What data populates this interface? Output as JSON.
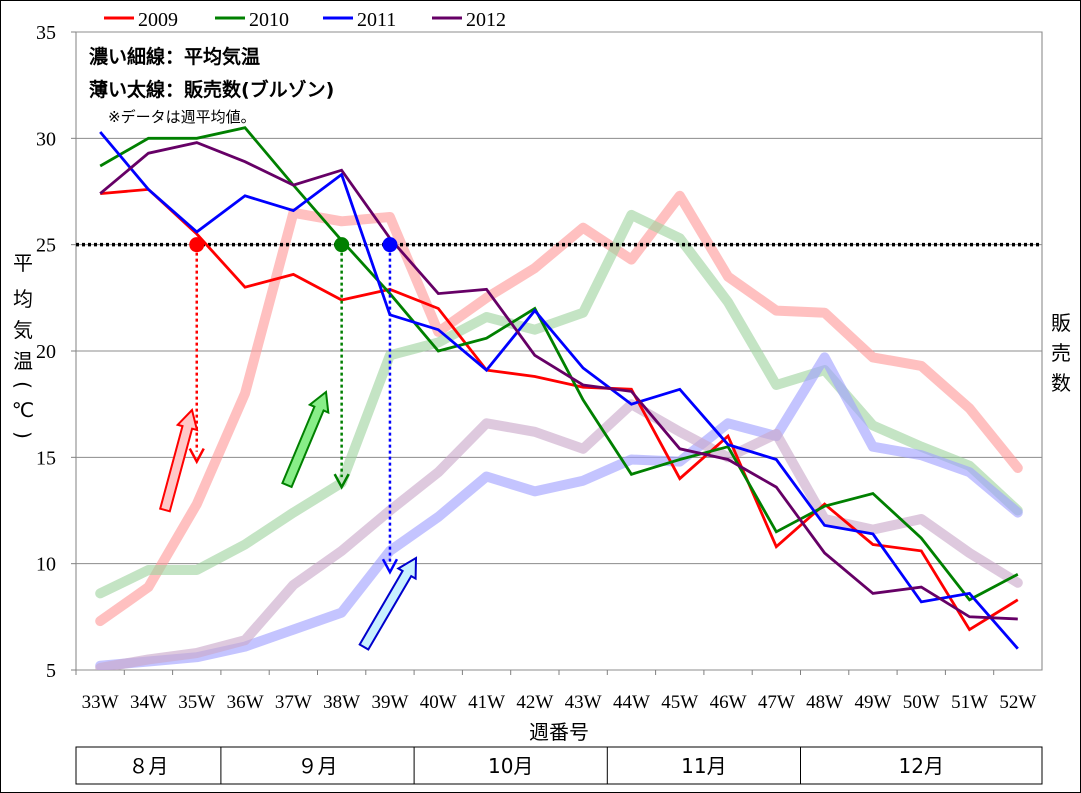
{
  "chart_data": {
    "type": "line",
    "xlabel": "週番号",
    "ylabel": "平均気温(℃)",
    "y2label": "販売数",
    "ylim": [
      5,
      35
    ],
    "yticks": [
      5,
      10,
      15,
      20,
      25,
      30,
      35
    ],
    "categories": [
      "33W",
      "34W",
      "35W",
      "36W",
      "37W",
      "38W",
      "39W",
      "40W",
      "41W",
      "42W",
      "43W",
      "44W",
      "45W",
      "46W",
      "47W",
      "48W",
      "49W",
      "50W",
      "51W",
      "52W"
    ],
    "months": [
      {
        "label": "８月",
        "span": [
          0,
          3
        ]
      },
      {
        "label": "９月",
        "span": [
          3,
          7
        ]
      },
      {
        "label": "10月",
        "span": [
          7,
          11
        ]
      },
      {
        "label": "11月",
        "span": [
          11,
          15
        ]
      },
      {
        "label": "12月",
        "span": [
          15,
          20
        ]
      }
    ],
    "notes": [
      "濃い細線：平均気温",
      "薄い太線：販売数(ブルゾン)",
      "※データは週平均値。"
    ],
    "reference_line": {
      "y": 25,
      "style": "dotted"
    },
    "legend_position": "top",
    "series": [
      {
        "name": "2009",
        "color": "#ff0000",
        "kind": "temperature",
        "values": [
          27.4,
          27.6,
          25.5,
          23.0,
          23.6,
          22.4,
          22.9,
          22.0,
          19.1,
          18.8,
          18.3,
          18.2,
          14.0,
          16.0,
          10.8,
          12.8,
          10.9,
          10.6,
          6.9,
          8.3
        ]
      },
      {
        "name": "2010",
        "color": "#008000",
        "kind": "temperature",
        "values": [
          28.7,
          30.0,
          30.0,
          30.5,
          27.8,
          25.2,
          22.7,
          20.0,
          20.6,
          22.0,
          17.7,
          14.2,
          14.9,
          15.5,
          11.5,
          12.7,
          13.3,
          11.2,
          8.3,
          9.5
        ]
      },
      {
        "name": "2011",
        "color": "#0000ff",
        "kind": "temperature",
        "values": [
          30.3,
          27.6,
          25.6,
          27.3,
          26.6,
          28.3,
          21.7,
          21.0,
          19.1,
          21.9,
          19.2,
          17.5,
          18.2,
          15.6,
          14.9,
          11.8,
          11.4,
          8.2,
          8.6,
          6.0
        ]
      },
      {
        "name": "2012",
        "color": "#660066",
        "kind": "temperature",
        "values": [
          27.4,
          29.3,
          29.8,
          28.9,
          27.8,
          28.5,
          25.3,
          22.7,
          22.9,
          19.8,
          18.4,
          18.1,
          15.4,
          14.9,
          13.6,
          10.5,
          8.6,
          8.9,
          7.5,
          7.4
        ]
      },
      {
        "name": "",
        "color": "#ff9999",
        "kind": "sales",
        "legend_of": "2009",
        "values": [
          7.3,
          8.9,
          12.8,
          18.0,
          26.5,
          26.1,
          26.3,
          20.9,
          22.5,
          23.9,
          25.8,
          24.3,
          27.3,
          23.5,
          21.9,
          21.8,
          19.7,
          19.3,
          17.3,
          14.5
        ]
      },
      {
        "name": "",
        "color": "#a0d4a0",
        "kind": "sales",
        "legend_of": "2010",
        "values": [
          8.6,
          9.7,
          9.7,
          10.9,
          12.4,
          13.8,
          19.8,
          20.4,
          21.6,
          21.0,
          21.8,
          26.4,
          25.3,
          22.3,
          18.4,
          19.1,
          16.5,
          15.5,
          14.6,
          12.5
        ]
      },
      {
        "name": "",
        "color": "#a0a0ff",
        "kind": "sales",
        "legend_of": "2011",
        "values": [
          5.2,
          5.4,
          5.6,
          6.1,
          6.9,
          7.7,
          10.6,
          12.2,
          14.1,
          13.4,
          13.9,
          14.9,
          14.8,
          16.6,
          16.0,
          19.7,
          15.5,
          15.1,
          14.3,
          12.4
        ]
      },
      {
        "name": "",
        "color": "#c9a8c9",
        "kind": "sales",
        "legend_of": "2012",
        "values": [
          5.1,
          5.5,
          5.8,
          6.4,
          9.0,
          10.6,
          12.5,
          14.3,
          16.6,
          16.2,
          15.4,
          17.5,
          16.2,
          15.0,
          16.1,
          12.1,
          11.6,
          12.1,
          10.5,
          9.1
        ]
      }
    ],
    "markers": [
      {
        "series": "2009",
        "x": "35W",
        "y": 25,
        "color": "#ff0000"
      },
      {
        "series": "2010",
        "x": "38W",
        "y": 25,
        "color": "#008000"
      },
      {
        "series": "2011",
        "x": "39W",
        "y": 25,
        "color": "#0000ff"
      }
    ]
  }
}
